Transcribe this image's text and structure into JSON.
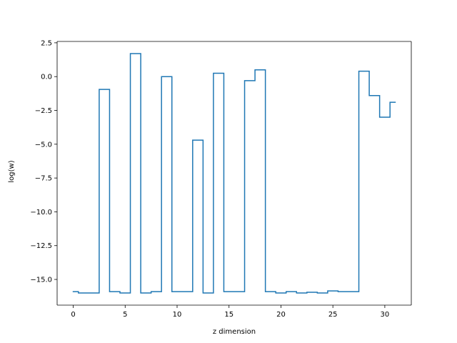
{
  "chart_data": {
    "type": "line",
    "drawstyle": "steps-mid",
    "title": "",
    "xlabel": "z dimension",
    "ylabel": "log(w)",
    "xlim": [
      -1.55,
      32.55
    ],
    "ylim": [
      -16.9,
      2.6
    ],
    "xticks": [
      0,
      5,
      10,
      15,
      20,
      25,
      30
    ],
    "yticks": [
      2.5,
      0.0,
      -2.5,
      -5.0,
      -7.5,
      -10.0,
      -12.5,
      -15.0
    ],
    "ytick_labels": [
      "2.5",
      "0.0",
      "−2.5",
      "−5.0",
      "−7.5",
      "−10.0",
      "−12.5",
      "−15.0"
    ],
    "grid": false,
    "line_color": "#1f77b4",
    "series": [
      {
        "x": [
          0,
          1,
          2,
          3,
          4,
          5,
          6,
          7,
          8,
          9,
          10,
          11,
          12,
          13,
          14,
          15,
          16,
          17,
          18,
          19,
          20,
          21,
          22,
          23,
          24,
          25,
          26,
          27,
          28,
          29,
          30,
          31
        ],
        "values": [
          -15.9,
          -16.0,
          -16.0,
          -0.95,
          -15.9,
          -16.0,
          1.7,
          -16.0,
          -15.9,
          0.0,
          -15.9,
          -15.9,
          -4.7,
          -16.0,
          0.25,
          -15.9,
          -15.9,
          -0.3,
          0.5,
          -15.9,
          -16.0,
          -15.9,
          -16.0,
          -15.95,
          -16.0,
          -15.85,
          -15.9,
          -15.9,
          0.4,
          -1.4,
          -3.0,
          -1.9
        ]
      }
    ]
  }
}
